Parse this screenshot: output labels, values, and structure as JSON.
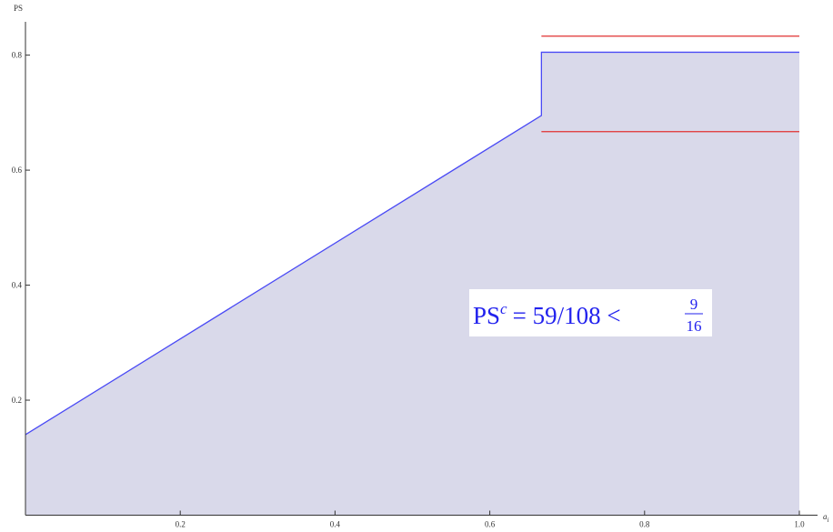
{
  "chart_data": {
    "type": "line",
    "y_label": "PS",
    "x_label": "a",
    "x_label_sub": "i",
    "xlim": [
      0,
      1
    ],
    "ylim": [
      0,
      0.85
    ],
    "xticks": [
      0.2,
      0.4,
      0.6,
      0.8,
      {
        "value": 1,
        "label": "1.0"
      }
    ],
    "yticks": [
      0.2,
      0.4,
      0.6,
      0.8
    ],
    "fill_color": "#d9d9ea",
    "series": [
      {
        "color": "#4a4af5",
        "fill": true,
        "x": [
          0,
          0.6667,
          0.6667,
          1
        ],
        "values": [
          0.14,
          0.695,
          0.805,
          0.805
        ]
      },
      {
        "color": "#e03030",
        "fill": false,
        "x": [
          0.6667,
          1
        ],
        "values": [
          0.833,
          0.833
        ]
      },
      {
        "color": "#e03030",
        "fill": false,
        "x": [
          0.6667,
          1
        ],
        "values": [
          0.667,
          0.667
        ]
      }
    ],
    "annotation": {
      "main": "PS",
      "sup": "c",
      "rest": "= 59/108 <",
      "numerator": "9",
      "denominator": "16"
    }
  }
}
